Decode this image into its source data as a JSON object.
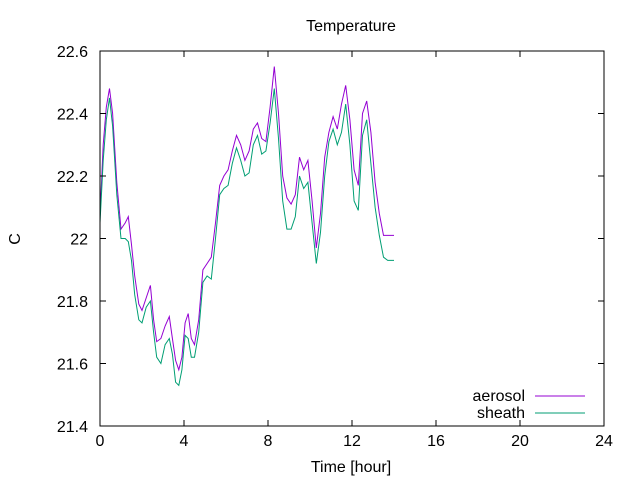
{
  "chart_data": {
    "type": "line",
    "title": "Temperature",
    "xlabel": "Time [hour]",
    "ylabel": "C",
    "xlim": [
      0,
      24
    ],
    "ylim": [
      21.4,
      22.6
    ],
    "xticks": [
      0,
      4,
      8,
      12,
      16,
      20,
      24
    ],
    "yticks": [
      21.4,
      21.6,
      21.8,
      22,
      22.2,
      22.4,
      22.6
    ],
    "grid": false,
    "legend_position": "bottom-right",
    "series": [
      {
        "name": "aerosol",
        "color": "#9400d3",
        "x": [
          0,
          0.15,
          0.3,
          0.45,
          0.6,
          0.8,
          1.0,
          1.2,
          1.35,
          1.5,
          1.65,
          1.85,
          2.0,
          2.2,
          2.4,
          2.55,
          2.7,
          2.9,
          3.1,
          3.3,
          3.45,
          3.6,
          3.75,
          3.9,
          4.05,
          4.2,
          4.35,
          4.5,
          4.7,
          4.9,
          5.1,
          5.3,
          5.5,
          5.7,
          5.9,
          6.1,
          6.3,
          6.5,
          6.7,
          6.9,
          7.1,
          7.3,
          7.5,
          7.7,
          7.9,
          8.1,
          8.3,
          8.5,
          8.7,
          8.9,
          9.1,
          9.3,
          9.5,
          9.7,
          9.9,
          10.1,
          10.3,
          10.5,
          10.7,
          10.9,
          11.1,
          11.3,
          11.5,
          11.7,
          11.9,
          12.1,
          12.3,
          12.5,
          12.7,
          12.9,
          13.1,
          13.3,
          13.5,
          13.7,
          13.9,
          14.0
        ],
        "y": [
          22.07,
          22.3,
          22.42,
          22.48,
          22.4,
          22.18,
          22.03,
          22.05,
          22.07,
          21.98,
          21.88,
          21.79,
          21.77,
          21.81,
          21.85,
          21.74,
          21.67,
          21.68,
          21.72,
          21.75,
          21.68,
          21.61,
          21.58,
          21.62,
          21.73,
          21.76,
          21.68,
          21.66,
          21.74,
          21.9,
          21.92,
          21.94,
          22.05,
          22.17,
          22.2,
          22.22,
          22.28,
          22.33,
          22.3,
          22.25,
          22.28,
          22.35,
          22.37,
          22.32,
          22.31,
          22.42,
          22.55,
          22.4,
          22.2,
          22.13,
          22.11,
          22.14,
          22.26,
          22.22,
          22.25,
          22.12,
          21.97,
          22.08,
          22.26,
          22.34,
          22.39,
          22.35,
          22.43,
          22.49,
          22.38,
          22.22,
          22.17,
          22.4,
          22.44,
          22.34,
          22.18,
          22.08,
          22.01,
          22.01,
          22.01,
          22.01
        ]
      },
      {
        "name": "sheath",
        "color": "#009e73",
        "x": [
          0,
          0.15,
          0.3,
          0.45,
          0.6,
          0.8,
          1.0,
          1.2,
          1.35,
          1.5,
          1.65,
          1.85,
          2.0,
          2.2,
          2.4,
          2.55,
          2.7,
          2.9,
          3.1,
          3.3,
          3.45,
          3.6,
          3.75,
          3.9,
          4.05,
          4.2,
          4.35,
          4.5,
          4.7,
          4.9,
          5.1,
          5.3,
          5.5,
          5.7,
          5.9,
          6.1,
          6.3,
          6.5,
          6.7,
          6.9,
          7.1,
          7.3,
          7.5,
          7.7,
          7.9,
          8.1,
          8.3,
          8.5,
          8.7,
          8.9,
          9.1,
          9.3,
          9.5,
          9.7,
          9.9,
          10.1,
          10.3,
          10.5,
          10.7,
          10.9,
          11.1,
          11.3,
          11.5,
          11.7,
          11.9,
          12.1,
          12.3,
          12.5,
          12.7,
          12.9,
          13.1,
          13.3,
          13.5,
          13.7,
          13.9,
          14.0
        ],
        "y": [
          22.05,
          22.25,
          22.38,
          22.45,
          22.36,
          22.14,
          22.0,
          22.0,
          21.99,
          21.93,
          21.82,
          21.74,
          21.73,
          21.78,
          21.8,
          21.7,
          21.62,
          21.6,
          21.66,
          21.68,
          21.63,
          21.54,
          21.53,
          21.58,
          21.69,
          21.68,
          21.62,
          21.62,
          21.7,
          21.86,
          21.88,
          21.87,
          22.0,
          22.14,
          22.16,
          22.17,
          22.24,
          22.29,
          22.25,
          22.2,
          22.21,
          22.3,
          22.33,
          22.27,
          22.28,
          22.37,
          22.48,
          22.32,
          22.12,
          22.03,
          22.03,
          22.07,
          22.2,
          22.16,
          22.18,
          22.05,
          21.92,
          22.02,
          22.2,
          22.31,
          22.35,
          22.3,
          22.34,
          22.43,
          22.3,
          22.12,
          22.09,
          22.33,
          22.38,
          22.24,
          22.1,
          22.01,
          21.94,
          21.93,
          21.93,
          21.93
        ]
      }
    ]
  }
}
